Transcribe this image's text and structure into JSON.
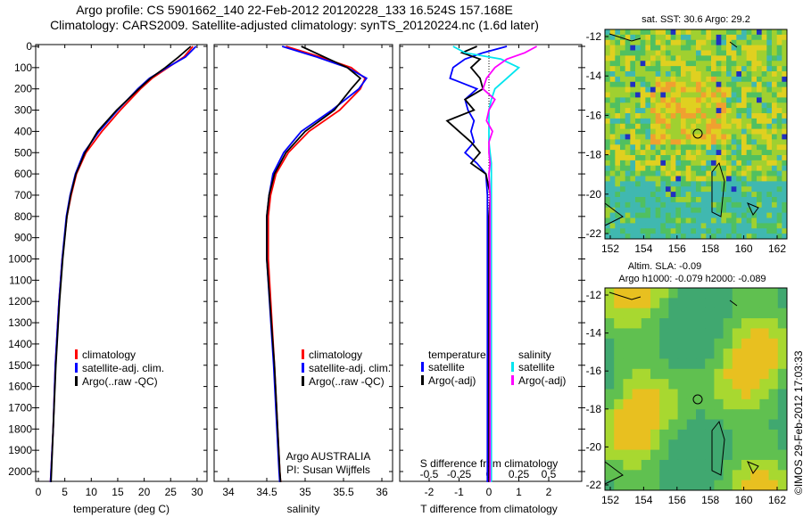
{
  "title_line1": "Argo profile: CS 5901662_140 22-Feb-2012 20120228_133 16.524S 157.168E",
  "title_line2": "Climatology: CARS2009. Satellite-adjusted climatology: synTS_20120224.nc (1.6d later)",
  "colors": {
    "climatology": "#ff0000",
    "satellite": "#0000ff",
    "argo": "#000000",
    "sal_satellite": "#00e5ee",
    "sal_argo": "#ff00ff"
  },
  "chart_data": [
    {
      "type": "line",
      "xlabel": "temperature (deg C)",
      "ylabel": "depth",
      "xlim": [
        -0.5,
        31
      ],
      "ylim": [
        2050,
        0
      ],
      "xticks": [
        "0",
        "5",
        "10",
        "15",
        "20",
        "25",
        "30"
      ],
      "yticks": [
        "0",
        "100",
        "200",
        "300",
        "400",
        "500",
        "600",
        "700",
        "800",
        "900",
        "1000",
        "1100",
        "1200",
        "1300",
        "1400",
        "1500",
        "1600",
        "1700",
        "1800",
        "1900",
        "2000"
      ],
      "depth": [
        0,
        50,
        100,
        150,
        200,
        300,
        400,
        500,
        600,
        700,
        800,
        1000,
        1200,
        1500,
        1800,
        2050
      ],
      "series": [
        {
          "name": "climatology",
          "values": [
            29.2,
            27.5,
            24.5,
            21.5,
            19.3,
            15.5,
            12.0,
            9.0,
            7.2,
            6.2,
            5.4,
            4.5,
            3.9,
            3.2,
            2.8,
            2.3
          ]
        },
        {
          "name": "satellite-adj. clim.",
          "values": [
            29.8,
            27.8,
            24.3,
            21.0,
            18.8,
            15.0,
            11.5,
            8.6,
            7.0,
            6.0,
            5.3,
            4.5,
            3.9,
            3.2,
            2.8,
            2.3
          ]
        },
        {
          "name": "Argo(..raw -QC)",
          "values": [
            28.8,
            26.5,
            24.0,
            21.2,
            19.0,
            14.8,
            11.2,
            8.8,
            7.1,
            6.1,
            5.4,
            4.6,
            4.0,
            3.3,
            2.8,
            2.4
          ]
        }
      ],
      "legend": [
        "climatology",
        "satellite-adj. clim.",
        "Argo(..raw -QC)"
      ]
    },
    {
      "type": "line",
      "xlabel": "salinity",
      "xlim": [
        33.8,
        36.05
      ],
      "ylim": [
        2050,
        0
      ],
      "xticks": [
        "34",
        "34.5",
        "35",
        "35.5",
        "36"
      ],
      "depth": [
        0,
        50,
        100,
        150,
        200,
        300,
        400,
        500,
        600,
        700,
        800,
        1000,
        1500,
        2000,
        2050
      ],
      "series": [
        {
          "name": "climatology",
          "values": [
            34.75,
            35.2,
            35.6,
            35.78,
            35.72,
            35.45,
            35.05,
            34.78,
            34.62,
            34.55,
            34.52,
            34.52,
            34.6,
            34.67,
            34.68
          ]
        },
        {
          "name": "satellite-adj. clim.",
          "values": [
            34.7,
            35.15,
            35.55,
            35.8,
            35.7,
            35.35,
            34.95,
            34.72,
            34.58,
            34.53,
            34.5,
            34.5,
            34.59,
            34.66,
            34.67
          ]
        },
        {
          "name": "Argo(..raw -QC)",
          "values": [
            34.95,
            35.25,
            35.55,
            35.72,
            35.6,
            35.38,
            35.0,
            34.75,
            34.6,
            34.53,
            34.5,
            34.5,
            34.6,
            34.67,
            34.68
          ]
        }
      ],
      "legend": [
        "climatology",
        "satellite-adj. clim.",
        "Argo(..raw -QC)"
      ],
      "annotation": [
        "Argo AUSTRALIA",
        "PI: Susan Wijffels"
      ]
    },
    {
      "type": "line",
      "xlabel": "T difference from climatology",
      "x2label": "S difference from climatology",
      "xlim": [
        -3,
        3
      ],
      "ylim": [
        2050,
        0
      ],
      "xticks": [
        "-2",
        "-1",
        "0",
        "1",
        "2"
      ],
      "x2ticks": [
        "-0.5",
        "-0.25",
        "0",
        "0.25",
        "0.5"
      ],
      "depth": [
        0,
        30,
        60,
        100,
        150,
        200,
        250,
        300,
        350,
        400,
        450,
        500,
        550,
        600,
        700,
        800,
        1000,
        1500,
        2050
      ],
      "series": [
        {
          "name": "temperature satellite",
          "values": [
            0.6,
            -0.2,
            -0.8,
            -1.2,
            -1.3,
            -0.4,
            -0.8,
            -0.7,
            -0.5,
            -0.6,
            -0.5,
            -0.8,
            -0.4,
            -0.1,
            -0.05,
            -0.05,
            -0.05,
            -0.05,
            -0.05
          ]
        },
        {
          "name": "temperature Argo(-adj)",
          "values": [
            -0.4,
            -0.9,
            -0.3,
            -0.6,
            -0.3,
            -0.2,
            -0.8,
            -0.5,
            -1.4,
            -1.0,
            -0.6,
            -0.3,
            -0.6,
            -0.1,
            0.05,
            0.0,
            0.0,
            0.0,
            0.0
          ]
        },
        {
          "name": "salinity satellite",
          "values": [
            -0.3,
            -0.2,
            0.1,
            0.25,
            0.15,
            0.05,
            0.02,
            0.0,
            0.0,
            0.0,
            0.0,
            0.01,
            0.02,
            0.02,
            0.02,
            0.02,
            0.02,
            0.02,
            0.02
          ]
        },
        {
          "name": "salinity Argo(-adj)",
          "values": [
            0.4,
            0.3,
            0.15,
            0.05,
            -0.02,
            -0.05,
            0.05,
            0.0,
            -0.02,
            0.03,
            0.0,
            0.0,
            0.01,
            0.0,
            0.01,
            0.01,
            0.01,
            0.01,
            0.01
          ]
        }
      ],
      "legend_headers": [
        "temperature",
        "salinity"
      ],
      "legend": [
        "satellite",
        "Argo(-adj)",
        "satellite",
        "Argo(-adj)"
      ]
    },
    {
      "type": "heatmap",
      "title": "sat. SST: 30.6 Argo: 29.2",
      "xticks": [
        "152",
        "154",
        "156",
        "158",
        "160",
        "162"
      ],
      "yticks": [
        "-12",
        "-14",
        "-16",
        "-18",
        "-20",
        "-22"
      ]
    },
    {
      "type": "heatmap",
      "title": "Altim. SLA: -0.09",
      "subtitle": "Argo h1000: -0.079 h2000: -0.089",
      "xticks": [
        "152",
        "154",
        "156",
        "158",
        "160",
        "162"
      ],
      "yticks": [
        "-12",
        "-14",
        "-16",
        "-18",
        "-20",
        "-22"
      ]
    }
  ],
  "credit": "©IMOS 29-Feb-2012 17:03:33"
}
